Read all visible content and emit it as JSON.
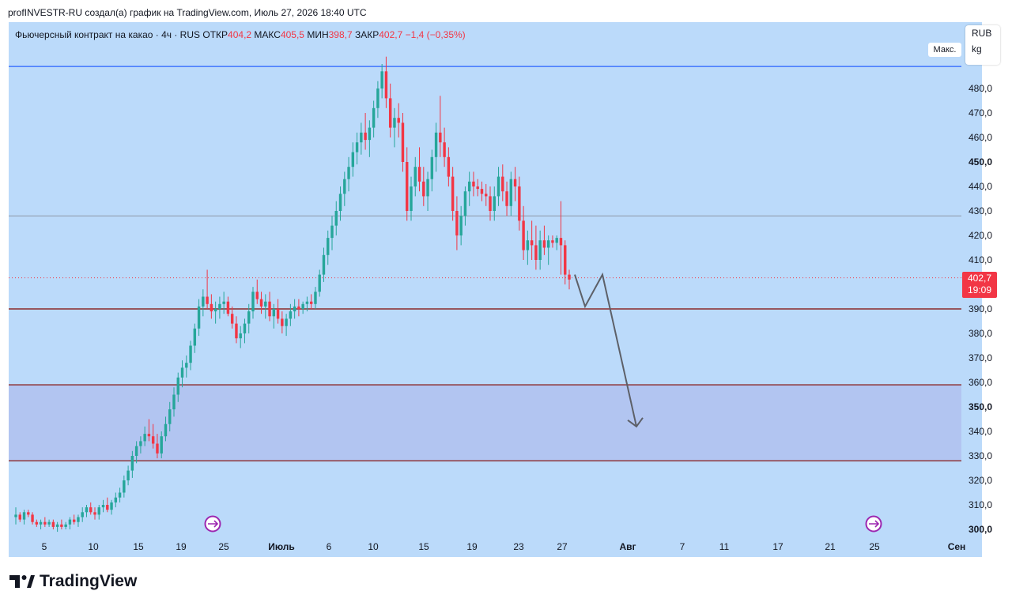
{
  "caption": "profINVESTR-RU создал(а) график на TradingView.com, Июль 27, 2026 18:40 UTC",
  "legend": {
    "symbol": "Фьючерсный контракт на какао · 4ч · RUS",
    "open_label": "ОТКР",
    "open": "404,2",
    "high_label": "МАКС",
    "high": "405,5",
    "low_label": "МИН",
    "low": "398,7",
    "close_label": "ЗАКР",
    "close": "402,7",
    "change": "−1,4 (−0,35%)"
  },
  "unit_box": {
    "currency": "RUB",
    "unit": "kg"
  },
  "max_label": "Макс.",
  "price_tag": {
    "price": "402,7",
    "timer": "19:09"
  },
  "brand": "TradingView",
  "colors": {
    "background": "#bbdafa",
    "up": "#26a69a",
    "down": "#f23645",
    "zone": "#b2c5f1",
    "level_line": "#8b2a2a",
    "arrow": "#5d6068"
  },
  "chart_data": {
    "type": "candlestick",
    "y_axis": {
      "range": [
        298,
        501
      ],
      "ticks": [
        "300,0",
        "310,0",
        "320,0",
        "330,0",
        "340,0",
        "350,0",
        "360,0",
        "370,0",
        "380,0",
        "390,0",
        "400,0",
        "410,0",
        "420,0",
        "430,0",
        "440,0",
        "450,0",
        "460,0",
        "470,0",
        "480,0"
      ],
      "bold_ticks": [
        "300,0",
        "350,0",
        "450,0"
      ]
    },
    "x_axis": {
      "ticks": [
        "5",
        "10",
        "15",
        "19",
        "25",
        "Июль",
        "6",
        "10",
        "15",
        "19",
        "23",
        "27",
        "Авг",
        "7",
        "11",
        "17",
        "21",
        "25",
        "Сен"
      ]
    },
    "candles": [
      [
        305,
        309,
        302,
        306
      ],
      [
        306,
        307,
        303,
        304
      ],
      [
        304,
        308,
        302,
        307
      ],
      [
        307,
        308,
        305,
        306
      ],
      [
        306,
        307,
        302,
        303
      ],
      [
        303,
        304,
        301,
        302
      ],
      [
        302,
        304,
        300,
        303
      ],
      [
        303,
        305,
        301,
        302
      ],
      [
        302,
        304,
        301,
        303
      ],
      [
        303,
        304,
        300,
        301
      ],
      [
        301,
        303,
        299,
        302
      ],
      [
        302,
        304,
        300,
        301
      ],
      [
        301,
        303,
        300,
        302
      ],
      [
        302,
        305,
        300,
        304
      ],
      [
        304,
        306,
        302,
        303
      ],
      [
        303,
        306,
        301,
        305
      ],
      [
        305,
        309,
        303,
        307
      ],
      [
        307,
        310,
        305,
        309
      ],
      [
        309,
        311,
        306,
        307
      ],
      [
        307,
        309,
        304,
        306
      ],
      [
        306,
        310,
        304,
        309
      ],
      [
        309,
        312,
        307,
        310
      ],
      [
        310,
        313,
        307,
        308
      ],
      [
        308,
        312,
        306,
        311
      ],
      [
        311,
        315,
        309,
        313
      ],
      [
        313,
        317,
        311,
        315
      ],
      [
        315,
        322,
        313,
        320
      ],
      [
        320,
        326,
        318,
        324
      ],
      [
        324,
        332,
        321,
        330
      ],
      [
        330,
        336,
        327,
        334
      ],
      [
        334,
        338,
        331,
        336
      ],
      [
        336,
        342,
        334,
        339
      ],
      [
        339,
        345,
        336,
        338
      ],
      [
        338,
        343,
        333,
        335
      ],
      [
        335,
        339,
        329,
        331
      ],
      [
        331,
        340,
        329,
        338
      ],
      [
        338,
        346,
        336,
        343
      ],
      [
        343,
        352,
        340,
        349
      ],
      [
        349,
        358,
        346,
        355
      ],
      [
        355,
        364,
        352,
        362
      ],
      [
        362,
        369,
        358,
        366
      ],
      [
        366,
        371,
        362,
        368
      ],
      [
        368,
        377,
        365,
        375
      ],
      [
        375,
        384,
        372,
        382
      ],
      [
        382,
        394,
        379,
        391
      ],
      [
        391,
        398,
        387,
        395
      ],
      [
        395,
        406,
        390,
        392
      ],
      [
        392,
        396,
        386,
        389
      ],
      [
        389,
        393,
        384,
        390
      ],
      [
        390,
        395,
        386,
        392
      ],
      [
        392,
        397,
        388,
        393
      ],
      [
        393,
        395,
        387,
        388
      ],
      [
        388,
        391,
        382,
        384
      ],
      [
        384,
        387,
        376,
        378
      ],
      [
        378,
        383,
        374,
        380
      ],
      [
        380,
        386,
        376,
        384
      ],
      [
        384,
        392,
        380,
        389
      ],
      [
        389,
        399,
        386,
        397
      ],
      [
        397,
        402,
        392,
        394
      ],
      [
        394,
        397,
        388,
        391
      ],
      [
        391,
        396,
        386,
        393
      ],
      [
        393,
        397,
        385,
        387
      ],
      [
        387,
        392,
        382,
        390
      ],
      [
        390,
        394,
        384,
        386
      ],
      [
        386,
        389,
        380,
        383
      ],
      [
        383,
        388,
        379,
        386
      ],
      [
        386,
        392,
        383,
        389
      ],
      [
        389,
        394,
        386,
        391
      ],
      [
        391,
        394,
        387,
        390
      ],
      [
        390,
        393,
        388,
        392
      ],
      [
        392,
        395,
        389,
        393
      ],
      [
        393,
        396,
        390,
        392
      ],
      [
        392,
        399,
        390,
        397
      ],
      [
        397,
        406,
        395,
        404
      ],
      [
        404,
        415,
        401,
        412
      ],
      [
        412,
        422,
        408,
        419
      ],
      [
        419,
        428,
        414,
        424
      ],
      [
        424,
        434,
        420,
        430
      ],
      [
        430,
        440,
        426,
        437
      ],
      [
        437,
        446,
        432,
        443
      ],
      [
        443,
        452,
        438,
        448
      ],
      [
        448,
        458,
        444,
        454
      ],
      [
        454,
        462,
        449,
        458
      ],
      [
        458,
        466,
        453,
        462
      ],
      [
        462,
        470,
        455,
        459
      ],
      [
        459,
        467,
        452,
        464
      ],
      [
        464,
        475,
        460,
        472
      ],
      [
        472,
        483,
        468,
        480
      ],
      [
        480,
        490,
        476,
        487
      ],
      [
        487,
        493,
        472,
        476
      ],
      [
        476,
        482,
        460,
        464
      ],
      [
        464,
        472,
        456,
        468
      ],
      [
        468,
        474,
        460,
        466
      ],
      [
        466,
        470,
        446,
        450
      ],
      [
        450,
        456,
        426,
        430
      ],
      [
        430,
        444,
        426,
        440
      ],
      [
        440,
        452,
        436,
        448
      ],
      [
        448,
        456,
        438,
        442
      ],
      [
        442,
        448,
        432,
        436
      ],
      [
        436,
        446,
        430,
        443
      ],
      [
        443,
        455,
        438,
        452
      ],
      [
        452,
        466,
        446,
        462
      ],
      [
        462,
        477,
        452,
        458
      ],
      [
        458,
        464,
        448,
        452
      ],
      [
        452,
        456,
        440,
        444
      ],
      [
        444,
        448,
        426,
        430
      ],
      [
        430,
        436,
        414,
        420
      ],
      [
        420,
        432,
        416,
        428
      ],
      [
        428,
        440,
        424,
        438
      ],
      [
        438,
        446,
        432,
        442
      ],
      [
        442,
        446,
        436,
        440
      ],
      [
        440,
        443,
        436,
        439
      ],
      [
        439,
        442,
        434,
        437
      ],
      [
        437,
        441,
        432,
        436
      ],
      [
        436,
        440,
        426,
        430
      ],
      [
        430,
        440,
        426,
        436
      ],
      [
        436,
        448,
        432,
        444
      ],
      [
        444,
        449,
        434,
        438
      ],
      [
        438,
        442,
        428,
        432
      ],
      [
        432,
        446,
        428,
        443
      ],
      [
        443,
        448,
        434,
        440
      ],
      [
        440,
        444,
        422,
        426
      ],
      [
        426,
        432,
        410,
        414
      ],
      [
        414,
        422,
        408,
        418
      ],
      [
        418,
        426,
        410,
        416
      ],
      [
        416,
        424,
        406,
        410
      ],
      [
        410,
        422,
        406,
        418
      ],
      [
        418,
        424,
        412,
        415
      ],
      [
        415,
        420,
        408,
        418
      ],
      [
        418,
        420,
        415,
        417
      ],
      [
        417,
        420,
        414,
        419
      ],
      [
        419,
        434,
        404,
        416
      ],
      [
        416,
        418,
        400,
        404
      ],
      [
        404,
        406,
        398,
        402
      ]
    ],
    "last_price": 402.7,
    "horizontal_levels": [
      {
        "label": "Макс.",
        "value": 489
      },
      {
        "value": 428
      },
      {
        "value": 390
      },
      {
        "value": 359
      },
      {
        "value": 328
      }
    ],
    "zone": [
      328,
      359
    ],
    "forecast_path": [
      [
        404,
        0
      ],
      [
        391,
        1
      ],
      [
        404,
        2
      ],
      [
        342,
        3
      ]
    ]
  }
}
